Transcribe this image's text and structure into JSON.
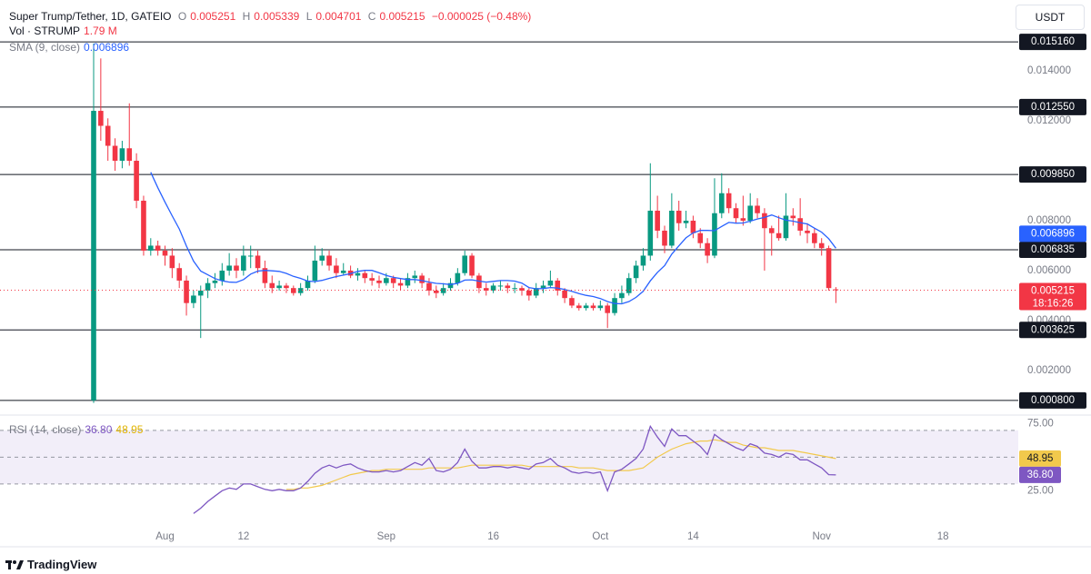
{
  "chart_data": {
    "type": "candlestick",
    "symbol": "Super Trump/Tether, 1D, GATEIO",
    "ohlc_labels": [
      "O",
      "H",
      "L",
      "C"
    ],
    "open": 0.005251,
    "high": 0.005339,
    "low": 0.004701,
    "close": 0.005215,
    "change": "−0.000025 (−0.48%)",
    "volume_label": "Vol · STRUMP",
    "volume_value": "1.79 M",
    "sma_label": "SMA (9, close)",
    "sma_value": 0.006896,
    "rsi_label": "RSI (14, close)",
    "rsi_last_label": "36.80",
    "rsi_ma_last_label": "48.95",
    "currency": "USDT",
    "countdown": "18:16:26",
    "brand": "TradingView",
    "up_color": "#089981",
    "down_color": "#f23645",
    "sma_color": "#2962ff",
    "rsi_color": "#7e57c2",
    "rsi_ma_color": "#f2c94c",
    "grid": false,
    "ylim": [
      0.00025,
      0.01684
    ],
    "yticks": [
      {
        "value": 0.014,
        "label": "0.014000"
      },
      {
        "value": 0.012,
        "label": "0.012000"
      },
      {
        "value": 0.008,
        "label": "0.008000"
      },
      {
        "value": 0.006,
        "label": "0.006000"
      },
      {
        "value": 0.004,
        "label": "0.004000"
      },
      {
        "value": 0.002,
        "label": "0.002000"
      }
    ],
    "levels": [
      {
        "value": 0.01516,
        "label": "0.015160"
      },
      {
        "value": 0.01255,
        "label": "0.012550"
      },
      {
        "value": 0.00985,
        "label": "0.009850"
      },
      {
        "value": 0.006835,
        "label": "0.006835"
      },
      {
        "value": 0.003625,
        "label": "0.003625"
      },
      {
        "value": 0.0008,
        "label": "0.000800"
      }
    ],
    "xticks": [
      {
        "value": 10,
        "label": "Aug"
      },
      {
        "value": 21,
        "label": "12"
      },
      {
        "value": 41,
        "label": "Sep"
      },
      {
        "value": 56,
        "label": "16"
      },
      {
        "value": 71,
        "label": "Oct"
      },
      {
        "value": 84,
        "label": "14"
      },
      {
        "value": 102,
        "label": "Nov"
      },
      {
        "value": 119,
        "label": "18"
      }
    ],
    "candles": [
      [
        0.0008,
        0.0151,
        0.0007,
        0.0124
      ],
      [
        0.0124,
        0.0145,
        0.0112,
        0.0118
      ],
      [
        0.0118,
        0.0121,
        0.0104,
        0.011
      ],
      [
        0.011,
        0.0113,
        0.01,
        0.0104
      ],
      [
        0.0104,
        0.0112,
        0.0101,
        0.0109
      ],
      [
        0.0109,
        0.0127,
        0.0102,
        0.0104
      ],
      [
        0.0104,
        0.0107,
        0.0085,
        0.0088
      ],
      [
        0.0088,
        0.009,
        0.0066,
        0.0068
      ],
      [
        0.0068,
        0.0073,
        0.0066,
        0.007
      ],
      [
        0.007,
        0.0072,
        0.0066,
        0.0068
      ],
      [
        0.0068,
        0.007,
        0.0062,
        0.0066
      ],
      [
        0.0066,
        0.0069,
        0.0057,
        0.0061
      ],
      [
        0.0061,
        0.0063,
        0.0053,
        0.0056
      ],
      [
        0.0056,
        0.0058,
        0.0042,
        0.0047
      ],
      [
        0.0047,
        0.0052,
        0.0045,
        0.005
      ],
      [
        0.005,
        0.0054,
        0.0033,
        0.0052
      ],
      [
        0.0052,
        0.0057,
        0.0049,
        0.0055
      ],
      [
        0.0055,
        0.0059,
        0.0053,
        0.0056
      ],
      [
        0.0056,
        0.0063,
        0.0054,
        0.006
      ],
      [
        0.006,
        0.0067,
        0.0058,
        0.0062
      ],
      [
        0.0062,
        0.0065,
        0.0057,
        0.006
      ],
      [
        0.006,
        0.007,
        0.0058,
        0.0066
      ],
      [
        0.0066,
        0.007,
        0.0061,
        0.0066
      ],
      [
        0.0066,
        0.0068,
        0.0059,
        0.0061
      ],
      [
        0.0061,
        0.0064,
        0.0053,
        0.0055
      ],
      [
        0.0055,
        0.0058,
        0.0051,
        0.0053
      ],
      [
        0.0053,
        0.0056,
        0.0052,
        0.0054
      ],
      [
        0.0054,
        0.0055,
        0.0051,
        0.0053
      ],
      [
        0.0053,
        0.0054,
        0.005,
        0.0051
      ],
      [
        0.0051,
        0.0055,
        0.005,
        0.0053
      ],
      [
        0.0053,
        0.0058,
        0.0052,
        0.0056
      ],
      [
        0.0056,
        0.007,
        0.0055,
        0.0064
      ],
      [
        0.0064,
        0.0069,
        0.0062,
        0.0066
      ],
      [
        0.0066,
        0.0068,
        0.006,
        0.0062
      ],
      [
        0.0062,
        0.0065,
        0.0057,
        0.0059
      ],
      [
        0.0059,
        0.0063,
        0.0058,
        0.006
      ],
      [
        0.006,
        0.0062,
        0.0057,
        0.0058
      ],
      [
        0.0058,
        0.0061,
        0.0056,
        0.0059
      ],
      [
        0.0059,
        0.006,
        0.0055,
        0.0057
      ],
      [
        0.0057,
        0.0059,
        0.0054,
        0.0056
      ],
      [
        0.0056,
        0.0058,
        0.0053,
        0.0055
      ],
      [
        0.0055,
        0.0059,
        0.0054,
        0.0057
      ],
      [
        0.0057,
        0.0058,
        0.0053,
        0.0055
      ],
      [
        0.0055,
        0.0057,
        0.0052,
        0.0054
      ],
      [
        0.0054,
        0.0059,
        0.0053,
        0.0057
      ],
      [
        0.0057,
        0.006,
        0.0055,
        0.0058
      ],
      [
        0.0058,
        0.0059,
        0.0053,
        0.0055
      ],
      [
        0.0055,
        0.0057,
        0.005,
        0.0052
      ],
      [
        0.0052,
        0.0054,
        0.0049,
        0.0051
      ],
      [
        0.0051,
        0.0055,
        0.005,
        0.0053
      ],
      [
        0.0053,
        0.0057,
        0.0052,
        0.0055
      ],
      [
        0.0055,
        0.0061,
        0.0054,
        0.0059
      ],
      [
        0.0059,
        0.0068,
        0.0058,
        0.0066
      ],
      [
        0.0066,
        0.0067,
        0.0057,
        0.0058
      ],
      [
        0.0058,
        0.0059,
        0.0051,
        0.0053
      ],
      [
        0.0053,
        0.0055,
        0.005,
        0.0052
      ],
      [
        0.0052,
        0.0055,
        0.0051,
        0.0054
      ],
      [
        0.0054,
        0.0056,
        0.0052,
        0.0054
      ],
      [
        0.0054,
        0.0055,
        0.0051,
        0.0053
      ],
      [
        0.0053,
        0.0055,
        0.0051,
        0.0053
      ],
      [
        0.0053,
        0.0054,
        0.005,
        0.0052
      ],
      [
        0.0052,
        0.0053,
        0.0048,
        0.005
      ],
      [
        0.005,
        0.0055,
        0.0049,
        0.0053
      ],
      [
        0.0053,
        0.0056,
        0.0051,
        0.0054
      ],
      [
        0.0054,
        0.006,
        0.0053,
        0.0056
      ],
      [
        0.0056,
        0.0057,
        0.005,
        0.0052
      ],
      [
        0.0052,
        0.0053,
        0.0047,
        0.0049
      ],
      [
        0.0049,
        0.005,
        0.0045,
        0.0046
      ],
      [
        0.0046,
        0.0047,
        0.0044,
        0.0045
      ],
      [
        0.0045,
        0.0047,
        0.0044,
        0.0046
      ],
      [
        0.0046,
        0.0047,
        0.0044,
        0.0045
      ],
      [
        0.0045,
        0.0048,
        0.0044,
        0.0046
      ],
      [
        0.0046,
        0.0047,
        0.0037,
        0.0043
      ],
      [
        0.0043,
        0.0051,
        0.0042,
        0.0049
      ],
      [
        0.0049,
        0.0054,
        0.0047,
        0.0051
      ],
      [
        0.0051,
        0.0059,
        0.005,
        0.0057
      ],
      [
        0.0057,
        0.0064,
        0.0055,
        0.0062
      ],
      [
        0.0062,
        0.0069,
        0.006,
        0.0066
      ],
      [
        0.0066,
        0.0103,
        0.0064,
        0.0084
      ],
      [
        0.0084,
        0.009,
        0.0073,
        0.0076
      ],
      [
        0.0076,
        0.0078,
        0.0067,
        0.007
      ],
      [
        0.007,
        0.0091,
        0.0069,
        0.0084
      ],
      [
        0.0084,
        0.0088,
        0.0076,
        0.0079
      ],
      [
        0.0079,
        0.0084,
        0.0077,
        0.008
      ],
      [
        0.008,
        0.0082,
        0.0073,
        0.0075
      ],
      [
        0.0075,
        0.0077,
        0.0069,
        0.0071
      ],
      [
        0.0071,
        0.0073,
        0.0063,
        0.0066
      ],
      [
        0.0066,
        0.0097,
        0.0065,
        0.0083
      ],
      [
        0.0083,
        0.0099,
        0.0081,
        0.0091
      ],
      [
        0.0091,
        0.0093,
        0.0083,
        0.0085
      ],
      [
        0.0085,
        0.0087,
        0.0079,
        0.0081
      ],
      [
        0.0081,
        0.009,
        0.0078,
        0.008
      ],
      [
        0.008,
        0.0091,
        0.0079,
        0.0086
      ],
      [
        0.0086,
        0.0089,
        0.0081,
        0.0083
      ],
      [
        0.0083,
        0.0085,
        0.006,
        0.0077
      ],
      [
        0.0077,
        0.0078,
        0.0066,
        0.0075
      ],
      [
        0.0075,
        0.0082,
        0.0072,
        0.0073
      ],
      [
        0.0073,
        0.0091,
        0.0072,
        0.0082
      ],
      [
        0.0082,
        0.0085,
        0.0078,
        0.0081
      ],
      [
        0.0081,
        0.0089,
        0.0074,
        0.0076
      ],
      [
        0.0076,
        0.0079,
        0.0071,
        0.0075
      ],
      [
        0.0075,
        0.0077,
        0.0069,
        0.0071
      ],
      [
        0.0071,
        0.0073,
        0.0066,
        0.0069
      ],
      [
        0.0069,
        0.007,
        0.0052,
        0.0053
      ],
      [
        0.005251,
        0.005339,
        0.004701,
        0.005215
      ]
    ],
    "sma": [
      null,
      null,
      null,
      null,
      null,
      null,
      null,
      null,
      0.00994,
      0.00932,
      0.00874,
      0.0082,
      0.00767,
      0.00698,
      0.00638,
      0.00598,
      0.00583,
      0.00568,
      0.00559,
      0.00554,
      0.00553,
      0.00564,
      0.00586,
      0.00598,
      0.00601,
      0.00599,
      0.00597,
      0.00589,
      0.00577,
      0.00569,
      0.00558,
      0.00556,
      0.00561,
      0.00569,
      0.00576,
      0.00582,
      0.00588,
      0.00597,
      0.00601,
      0.00601,
      0.00591,
      0.00581,
      0.00573,
      0.00568,
      0.00564,
      0.00564,
      0.0056,
      0.00554,
      0.00549,
      0.00547,
      0.00544,
      0.00549,
      0.00562,
      0.00563,
      0.00558,
      0.00554,
      0.00557,
      0.0056,
      0.0056,
      0.00558,
      0.0055,
      0.00532,
      0.00527,
      0.00528,
      0.00532,
      0.0053,
      0.00524,
      0.00517,
      0.00508,
      0.00501,
      0.00496,
      0.00488,
      0.00476,
      0.00468,
      0.00467,
      0.00476,
      0.00493,
      0.00517,
      0.00559,
      0.00593,
      0.0062,
      0.00666,
      0.00699,
      0.00731,
      0.00751,
      0.00761,
      0.00761,
      0.0076,
      0.00777,
      0.00793,
      0.0079,
      0.00791,
      0.00798,
      0.00807,
      0.00813,
      0.00823,
      0.00812,
      0.00802,
      0.00798,
      0.00792,
      0.00787,
      0.0077,
      0.00754,
      0.00728,
      0.006896
    ],
    "rsi_ylim": [
      -10,
      78
    ],
    "rsi_ticks": [
      {
        "value": 75,
        "label": "75.00"
      },
      {
        "value": 25,
        "label": "25.00"
      }
    ],
    "rsi_levels": [
      70,
      50,
      30
    ],
    "rsi": [
      null,
      null,
      null,
      null,
      null,
      null,
      null,
      null,
      null,
      null,
      null,
      null,
      null,
      null,
      8,
      12,
      17,
      21,
      25,
      27,
      26,
      30,
      30,
      28,
      26,
      25,
      26,
      25,
      25,
      27,
      32,
      38,
      42,
      44,
      42,
      44,
      45,
      42,
      40,
      39,
      39,
      40,
      39,
      40,
      43,
      46,
      44,
      49,
      40,
      39,
      41,
      46,
      56,
      47,
      42,
      42,
      43,
      43,
      42,
      43,
      42,
      41,
      45,
      46,
      49,
      44,
      42,
      39,
      38,
      39,
      38,
      39,
      25,
      39,
      41,
      45,
      49,
      56,
      73,
      65,
      58,
      71,
      66,
      66,
      62,
      58,
      52,
      67,
      63,
      60,
      57,
      55,
      60,
      58,
      53,
      52,
      50,
      53,
      52,
      48,
      48,
      45,
      42,
      37,
      36.8
    ],
    "rsi_ma": [
      null,
      null,
      null,
      null,
      null,
      null,
      null,
      null,
      null,
      null,
      null,
      null,
      null,
      null,
      null,
      null,
      null,
      null,
      null,
      null,
      null,
      null,
      null,
      null,
      null,
      null,
      null,
      26,
      26,
      27,
      27,
      28,
      29,
      31,
      33,
      35,
      37,
      38,
      39,
      40,
      40,
      41,
      41,
      41,
      41,
      41,
      41,
      42,
      42,
      42,
      42,
      42,
      43,
      44,
      44,
      44,
      44,
      44,
      44,
      44,
      44,
      43,
      43,
      43,
      43,
      43,
      43,
      43,
      42,
      42,
      42,
      41,
      40,
      40,
      40,
      40,
      41,
      42,
      46,
      50,
      53,
      56,
      58,
      60,
      61,
      62,
      62,
      63,
      62,
      61,
      61,
      59,
      58,
      57,
      57,
      56,
      55,
      55,
      55,
      54,
      53,
      52,
      51,
      50,
      48.95
    ]
  }
}
